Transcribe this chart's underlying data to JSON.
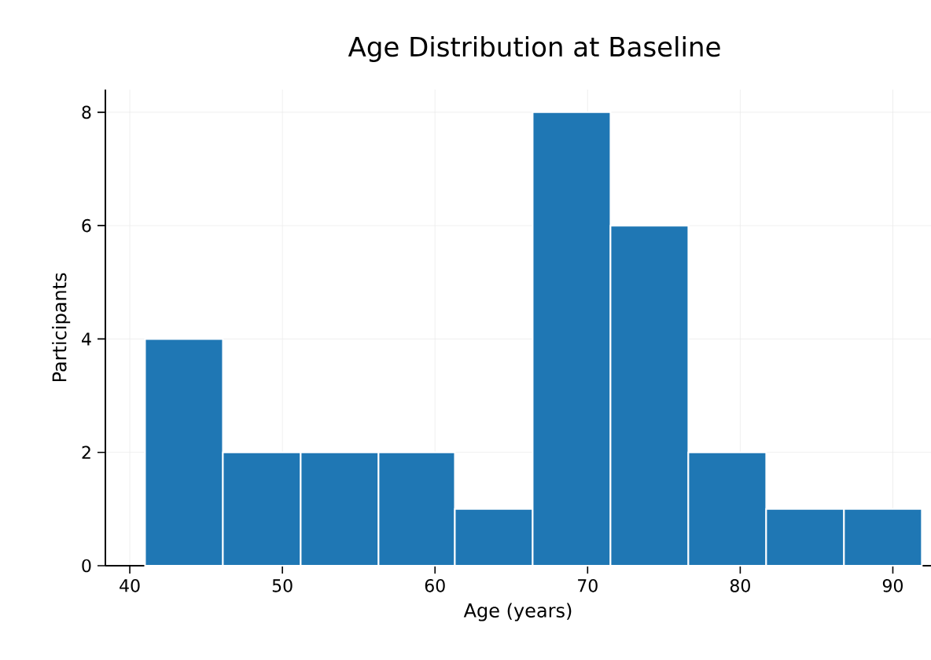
{
  "chart_data": {
    "type": "histogram",
    "title": "Age Distribution at Baseline",
    "xlabel": "Age (years)",
    "ylabel": "Participants",
    "bins": [
      41,
      46.1,
      51.2,
      56.3,
      61.3,
      66.4,
      71.5,
      76.6,
      81.7,
      86.8,
      91.9
    ],
    "values": [
      4,
      2,
      2,
      2,
      1,
      8,
      6,
      2,
      1,
      1
    ],
    "color": "#1f77b4",
    "xlim": [
      38.4,
      92.5
    ],
    "ylim": [
      0,
      8.4
    ],
    "xticks": [
      40,
      50,
      60,
      70,
      80,
      90
    ],
    "yticks": [
      0,
      2,
      4,
      6,
      8
    ],
    "grid": true
  }
}
